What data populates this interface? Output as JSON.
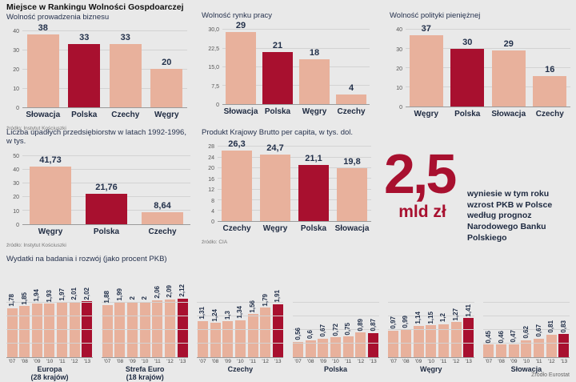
{
  "page": {
    "main_title": "Miejsce w Rankingu Wolności Gospdoarczej"
  },
  "colors": {
    "background": "#e9e9e9",
    "bar": "#e8b19c",
    "bar_highlight": "#a8102f",
    "text": "#22304a",
    "grid": "#d3d3d3"
  },
  "highlight_note": {
    "big_value": "2,5",
    "big_unit": "mld zł",
    "text": "wyniesie w tym roku wzrost PKB w Polsce według prognoz Narodowego Banku Polskiego"
  },
  "chart_data": [
    {
      "id": "business",
      "type": "bar",
      "title": "Wolność prowadzenia biznesu",
      "categories": [
        "Słowacja",
        "Polska",
        "Czechy",
        "Węgry"
      ],
      "values": [
        38,
        33,
        33,
        20
      ],
      "value_labels": [
        "38",
        "33",
        "33",
        "20"
      ],
      "highlight_category": "Polska",
      "ylim": [
        0,
        40
      ],
      "yticks": [
        "40",
        "30",
        "20",
        "10",
        "0"
      ],
      "source": "źródło: Instytut Kościuszki"
    },
    {
      "id": "labor",
      "type": "bar",
      "title": "Wolność rynku pracy",
      "categories": [
        "Słowacja",
        "Polska",
        "Węgry",
        "Czechy"
      ],
      "values": [
        29,
        21,
        18,
        4
      ],
      "value_labels": [
        "29",
        "21",
        "18",
        "4"
      ],
      "highlight_category": "Polska",
      "ylim": [
        0,
        30
      ],
      "yticks": [
        "30,0",
        "22,5",
        "15,0",
        "7,5",
        "0"
      ],
      "source": ""
    },
    {
      "id": "monetary",
      "type": "bar",
      "title": "Wolność polityki pieniężnej",
      "categories": [
        "Węgry",
        "Polska",
        "Słowacja",
        "Czechy"
      ],
      "values": [
        37,
        30,
        29,
        16
      ],
      "value_labels": [
        "37",
        "30",
        "29",
        "16"
      ],
      "highlight_category": "Polska",
      "ylim": [
        0,
        40
      ],
      "yticks": [
        "40",
        "30",
        "20",
        "10",
        "0"
      ],
      "source": ""
    },
    {
      "id": "bankruptcies",
      "type": "bar",
      "title": "Liczba upadłych przedsiębiorstw w latach 1992-1996, w tys.",
      "categories": [
        "Węgry",
        "Polska",
        "Czechy"
      ],
      "values": [
        41.73,
        21.76,
        8.64
      ],
      "value_labels": [
        "41,73",
        "21,76",
        "8,64"
      ],
      "highlight_category": "Polska",
      "ylim": [
        0,
        50
      ],
      "yticks": [
        "50",
        "40",
        "30",
        "20",
        "10",
        "0"
      ],
      "source": "źródło: Instytut Kościuszki"
    },
    {
      "id": "gdp",
      "type": "bar",
      "title": "Produkt Krajowy Brutto per capita, w tys. dol.",
      "categories": [
        "Czechy",
        "Węgry",
        "Polska",
        "Słowacja"
      ],
      "values": [
        26.3,
        24.7,
        21.1,
        19.8
      ],
      "value_labels": [
        "26,3",
        "24,7",
        "21,1",
        "19,8"
      ],
      "highlight_category": "Polska",
      "ylim": [
        0,
        28
      ],
      "yticks": [
        "28",
        "24",
        "20",
        "16",
        "12",
        "8",
        "4",
        "0"
      ],
      "source": "źródło: CIA"
    },
    {
      "id": "rnd",
      "type": "bar",
      "title": "Wydatki na badania i rozwój (jako procent PKB)",
      "years": [
        "'07",
        "'08",
        "'09",
        "'10",
        "'11",
        "'12",
        "'13"
      ],
      "highlight_year": "'13",
      "ylim": [
        0,
        2.2
      ],
      "groups": [
        {
          "name": "Europa",
          "name2": "(28 krajów)",
          "values": [
            1.78,
            1.85,
            1.94,
            1.93,
            1.97,
            2.01,
            2.02
          ],
          "value_labels": [
            "1,78",
            "1,85",
            "1,94",
            "1,93",
            "1,97",
            "2,01",
            "2,02"
          ]
        },
        {
          "name": "Strefa Euro",
          "name2": "(18 krajów)",
          "values": [
            1.88,
            1.99,
            2,
            2,
            2.06,
            2.09,
            2.12
          ],
          "value_labels": [
            "1,88",
            "1,99",
            "2",
            "2",
            "2,06",
            "2,09",
            "2,12"
          ]
        },
        {
          "name": "Czechy",
          "name2": "",
          "values": [
            1.31,
            1.24,
            1.3,
            1.34,
            1.56,
            1.79,
            1.91
          ],
          "value_labels": [
            "1,31",
            "1,24",
            "1,3",
            "1,34",
            "1,56",
            "1,79",
            "1,91"
          ]
        },
        {
          "name": "Polska",
          "name2": "",
          "values": [
            0.56,
            0.6,
            0.67,
            0.72,
            0.75,
            0.89,
            0.87
          ],
          "value_labels": [
            "0,56",
            "0,6",
            "0,67",
            "0,72",
            "0,75",
            "0,89",
            "0,87"
          ]
        },
        {
          "name": "Węgry",
          "name2": "",
          "values": [
            0.97,
            0.99,
            1.14,
            1.15,
            1.2,
            1.27,
            1.41
          ],
          "value_labels": [
            "0,97",
            "0,99",
            "1,14",
            "1,15",
            "1,2",
            "1,27",
            "1,41"
          ]
        },
        {
          "name": "Słowacja",
          "name2": "",
          "values": [
            0.45,
            0.46,
            0.47,
            0.62,
            0.67,
            0.81,
            0.83
          ],
          "value_labels": [
            "0,45",
            "0,46",
            "0,47",
            "0,62",
            "0,67",
            "0,81",
            "0,83"
          ]
        }
      ],
      "source": "Źródło Eurostat"
    }
  ]
}
